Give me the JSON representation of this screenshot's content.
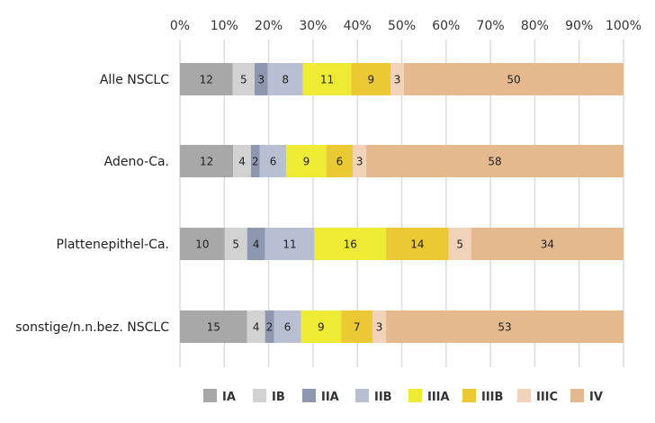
{
  "chart_data": {
    "type": "bar",
    "orientation": "horizontal",
    "stacked": true,
    "title": "",
    "xlabel": "",
    "ylabel": "",
    "xlim": [
      0,
      100
    ],
    "x_ticks": [
      "0%",
      "10%",
      "20%",
      "30%",
      "40%",
      "50%",
      "60%",
      "70%",
      "80%",
      "90%",
      "100%"
    ],
    "grid": true,
    "legend_position": "bottom",
    "categories": [
      "Alle NSCLC",
      "Adeno-Ca.",
      "Plattenepithel-Ca.",
      "sonstige/n.n.bez. NSCLC"
    ],
    "series": [
      {
        "name": "IA",
        "color": "#a8a8a8",
        "values": [
          12,
          12,
          10,
          15
        ]
      },
      {
        "name": "IB",
        "color": "#d2d2d2",
        "values": [
          5,
          4,
          5,
          4
        ]
      },
      {
        "name": "IIA",
        "color": "#8d97b0",
        "values": [
          3,
          2,
          4,
          2
        ]
      },
      {
        "name": "IIB",
        "color": "#b8bfd2",
        "values": [
          8,
          6,
          11,
          6
        ]
      },
      {
        "name": "IIIA",
        "color": "#eeeb35",
        "values": [
          11,
          9,
          16,
          9
        ]
      },
      {
        "name": "IIIB",
        "color": "#eac935",
        "values": [
          9,
          6,
          14,
          7
        ]
      },
      {
        "name": "IIIC",
        "color": "#f0d3b8",
        "values": [
          3,
          3,
          5,
          3
        ]
      },
      {
        "name": "IV",
        "color": "#e5b98e",
        "values": [
          50,
          58,
          34,
          53
        ]
      }
    ]
  }
}
